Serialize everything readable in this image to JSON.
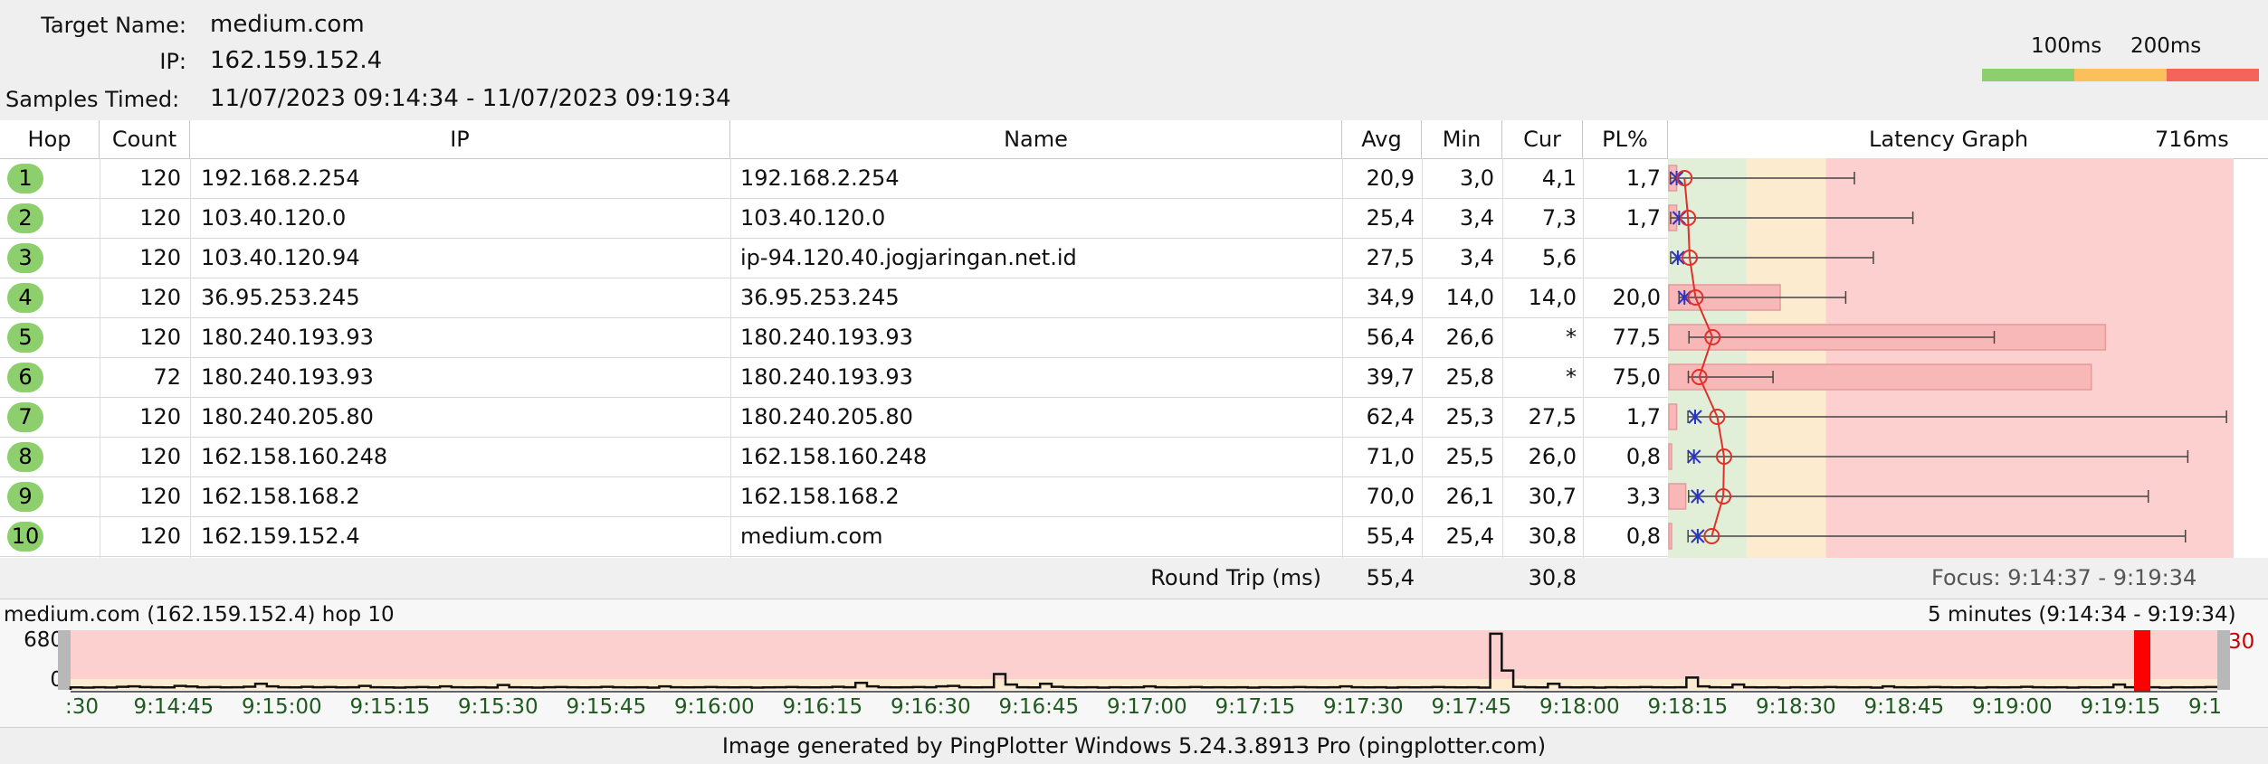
{
  "header": {
    "target_label": "Target Name:",
    "target_value": "medium.com",
    "ip_label": "IP:",
    "ip_value": "162.159.152.4",
    "samples_label": "Samples Timed:",
    "samples_value": "11/07/2023 09:14:34 - 11/07/2023 09:19:34",
    "scale_100": "100ms",
    "scale_200": "200ms",
    "scale_colors": [
      "#8ccf6c",
      "#fbbf5b",
      "#f4645a"
    ]
  },
  "columns": {
    "hop": "Hop",
    "count": "Count",
    "ip": "IP",
    "name": "Name",
    "avg": "Avg",
    "min": "Min",
    "cur": "Cur",
    "pl": "PL%",
    "graph": "Latency Graph",
    "graph_max": "716ms"
  },
  "graph": {
    "max_ms": 716,
    "zones": [
      {
        "to_ms": 100,
        "color": "#e1efd9"
      },
      {
        "to_ms": 200,
        "color": "#fdebcf"
      },
      {
        "to_ms": 716,
        "color": "#fbd0cf"
      }
    ]
  },
  "hops": [
    {
      "hop": "1",
      "count": "120",
      "ip": "192.168.2.254",
      "name": "192.168.2.254",
      "avg": "20,9",
      "min": "3,0",
      "cur": "4,1",
      "pl": "1,7",
      "avg_ms": 20.9,
      "min_ms": 3.0,
      "max_ms": 236,
      "cur_ms": 4.1,
      "pl_pct": 1.7
    },
    {
      "hop": "2",
      "count": "120",
      "ip": "103.40.120.0",
      "name": "103.40.120.0",
      "avg": "25,4",
      "min": "3,4",
      "cur": "7,3",
      "pl": "1,7",
      "avg_ms": 25.4,
      "min_ms": 3.4,
      "max_ms": 310,
      "cur_ms": 7.3,
      "pl_pct": 1.7
    },
    {
      "hop": "3",
      "count": "120",
      "ip": "103.40.120.94",
      "name": "ip-94.120.40.jogjaringan.net.id",
      "avg": "27,5",
      "min": "3,4",
      "cur": "5,6",
      "pl": "",
      "avg_ms": 27.5,
      "min_ms": 3.4,
      "max_ms": 260,
      "cur_ms": 5.6,
      "pl_pct": 0
    },
    {
      "hop": "4",
      "count": "120",
      "ip": "36.95.253.245",
      "name": "36.95.253.245",
      "avg": "34,9",
      "min": "14,0",
      "cur": "14,0",
      "pl": "20,0",
      "avg_ms": 34.9,
      "min_ms": 14.0,
      "max_ms": 225,
      "cur_ms": 14.0,
      "pl_pct": 20.0
    },
    {
      "hop": "5",
      "count": "120",
      "ip": "180.240.193.93",
      "name": "180.240.193.93",
      "avg": "56,4",
      "min": "26,6",
      "cur": "*",
      "pl": "77,5",
      "avg_ms": 56.4,
      "min_ms": 26.6,
      "max_ms": 413,
      "cur_ms": null,
      "pl_pct": 77.5
    },
    {
      "hop": "6",
      "count": "72",
      "ip": "180.240.193.93",
      "name": "180.240.193.93",
      "avg": "39,7",
      "min": "25,8",
      "cur": "*",
      "pl": "75,0",
      "avg_ms": 39.7,
      "min_ms": 25.8,
      "max_ms": 133,
      "cur_ms": null,
      "pl_pct": 75.0
    },
    {
      "hop": "7",
      "count": "120",
      "ip": "180.240.205.80",
      "name": "180.240.205.80",
      "avg": "62,4",
      "min": "25,3",
      "cur": "27,5",
      "pl": "1,7",
      "avg_ms": 62.4,
      "min_ms": 25.3,
      "max_ms": 707,
      "cur_ms": 27.5,
      "pl_pct": 1.7
    },
    {
      "hop": "8",
      "count": "120",
      "ip": "162.158.160.248",
      "name": "162.158.160.248",
      "avg": "71,0",
      "min": "25,5",
      "cur": "26,0",
      "pl": "0,8",
      "avg_ms": 71.0,
      "min_ms": 25.5,
      "max_ms": 658,
      "cur_ms": 26.0,
      "pl_pct": 0.8
    },
    {
      "hop": "9",
      "count": "120",
      "ip": "162.158.168.2",
      "name": "162.158.168.2",
      "avg": "70,0",
      "min": "26,1",
      "cur": "30,7",
      "pl": "3,3",
      "avg_ms": 70.0,
      "min_ms": 26.1,
      "max_ms": 608,
      "cur_ms": 30.7,
      "pl_pct": 3.3
    },
    {
      "hop": "10",
      "count": "120",
      "ip": "162.159.152.4",
      "name": "medium.com",
      "avg": "55,4",
      "min": "25,4",
      "cur": "30,8",
      "pl": "0,8",
      "avg_ms": 55.4,
      "min_ms": 25.4,
      "max_ms": 655,
      "cur_ms": 30.8,
      "pl_pct": 0.8
    }
  ],
  "summary": {
    "label": "Round Trip (ms)",
    "avg": "55,4",
    "cur": "30,8",
    "focus": "Focus: 9:14:37 - 9:19:34"
  },
  "timeline": {
    "title": "medium.com (162.159.152.4) hop 10",
    "range": "5 minutes (9:14:34 - 9:19:34)",
    "y_top": "680",
    "y_bottom": "0",
    "right_value": "30",
    "ticks": [
      ":30",
      "9:14:45",
      "9:15:00",
      "9:15:15",
      "9:15:30",
      "9:15:45",
      "9:16:00",
      "9:16:15",
      "9:16:30",
      "9:16:45",
      "9:17:00",
      "9:17:15",
      "9:17:30",
      "9:17:45",
      "9:18:00",
      "9:18:15",
      "9:18:30",
      "9:18:45",
      "9:19:00",
      "9:19:15",
      "9:1"
    ],
    "samples_ms": [
      28,
      26,
      30,
      27,
      35,
      40,
      32,
      30,
      28,
      45,
      38,
      30,
      32,
      28,
      30,
      36,
      70,
      40,
      30,
      28,
      35,
      30,
      32,
      28,
      30,
      45,
      30,
      28,
      26,
      30,
      32,
      28,
      40,
      30,
      28,
      30,
      27,
      55,
      30,
      28,
      26,
      30,
      32,
      30,
      28,
      30,
      35,
      30,
      28,
      30,
      26,
      40,
      30,
      28,
      30,
      32,
      30,
      28,
      30,
      26,
      28,
      30,
      32,
      30,
      28,
      30,
      35,
      30,
      80,
      40,
      30,
      28,
      30,
      32,
      30,
      40,
      45,
      30,
      28,
      30,
      180,
      60,
      30,
      28,
      70,
      35,
      30,
      28,
      30,
      26,
      30,
      28,
      30,
      40,
      30,
      28,
      30,
      32,
      28,
      30,
      28,
      30,
      26,
      30,
      28,
      30,
      32,
      30,
      28,
      30,
      40,
      30,
      28,
      30,
      26,
      30,
      28,
      30,
      32,
      30,
      28,
      30,
      26,
      640,
      220,
      35,
      30,
      28,
      70,
      30,
      28,
      30,
      26,
      30,
      28,
      30,
      32,
      30,
      28,
      30,
      140,
      40,
      30,
      28,
      60,
      30,
      28,
      30,
      26,
      30,
      28,
      30,
      32,
      30,
      28,
      30,
      26,
      40,
      30,
      28,
      30,
      32,
      30,
      28,
      30,
      26,
      30,
      28,
      30,
      35,
      30,
      28,
      30,
      26,
      30,
      28,
      30,
      60,
      30,
      28,
      30,
      26,
      30,
      28,
      30,
      32
    ]
  },
  "footer": "Image generated by PingPlotter Windows 5.24.3.8913 Pro (pingplotter.com)"
}
